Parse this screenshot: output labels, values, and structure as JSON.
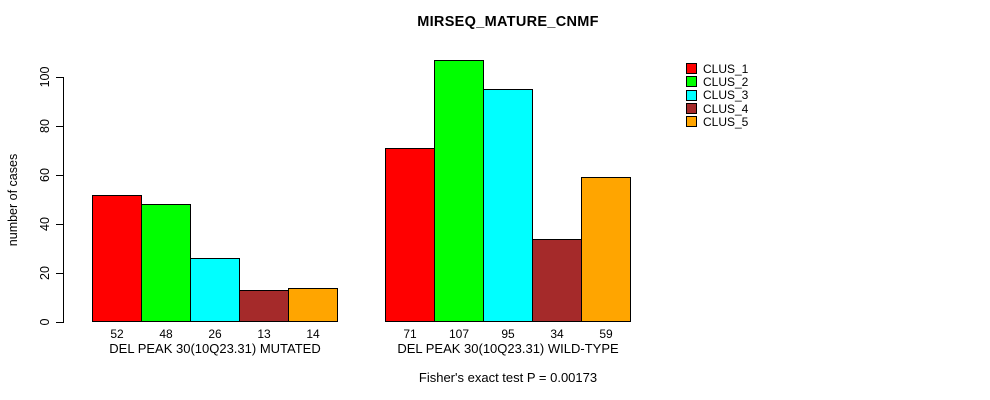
{
  "chart_data": {
    "type": "bar",
    "title": "MIRSEQ_MATURE_CNMF",
    "ylabel": "number of cases",
    "xlabel": "",
    "ylim": [
      0,
      110
    ],
    "yticks": [
      0,
      20,
      40,
      60,
      80,
      100
    ],
    "grid": false,
    "legend_position": "right",
    "categories": [
      "DEL PEAK 30(10Q23.31) MUTATED",
      "DEL PEAK 30(10Q23.31) WILD-TYPE"
    ],
    "series": [
      {
        "name": "CLUS_1",
        "color": "#FF0000",
        "values": [
          52,
          71
        ]
      },
      {
        "name": "CLUS_2",
        "color": "#00FF00",
        "values": [
          48,
          107
        ]
      },
      {
        "name": "CLUS_3",
        "color": "#00FFFF",
        "values": [
          26,
          95
        ]
      },
      {
        "name": "CLUS_4",
        "color": "#A52A2A",
        "values": [
          13,
          34
        ]
      },
      {
        "name": "CLUS_5",
        "color": "#FFA500",
        "values": [
          14,
          59
        ]
      }
    ],
    "bar_value_labels_shown": true,
    "annotation": "Fisher's exact test P = 0.00173"
  }
}
